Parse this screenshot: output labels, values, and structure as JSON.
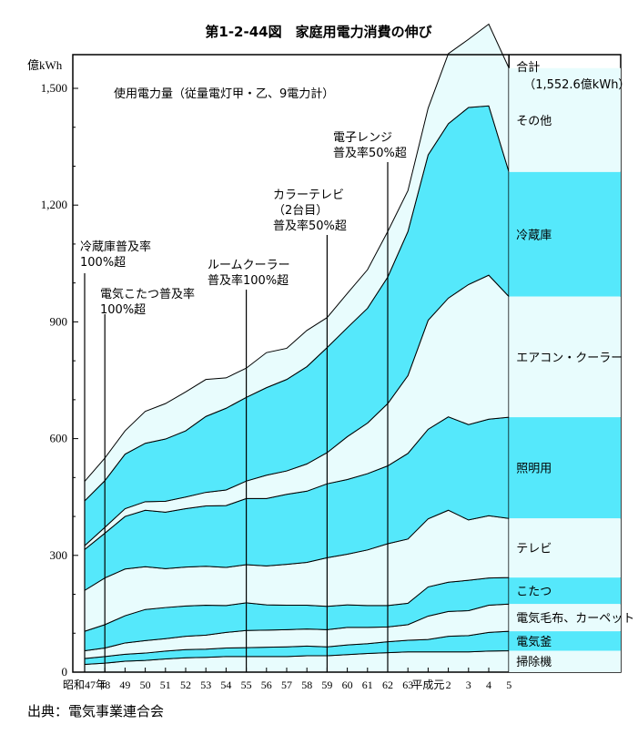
{
  "title": "第1-2-44図　家庭用電力消費の伸び",
  "source": "出典：電気事業連合会",
  "chart_data": {
    "type": "area",
    "stacked": true,
    "y_unit": "億kWh",
    "y_subtitle": "使用電力量（従量電灯甲・乙、9電力計）",
    "ylim": [
      0,
      1570
    ],
    "yticks": [
      0,
      300,
      600,
      900,
      1200,
      1500
    ],
    "ytick_labels": [
      "0",
      "300",
      "600",
      "900",
      "1,200",
      "1,500"
    ],
    "x": [
      "昭和47年",
      "48",
      "49",
      "50",
      "51",
      "52",
      "53",
      "54",
      "55",
      "56",
      "57",
      "58",
      "59",
      "60",
      "61",
      "62",
      "63",
      "平成元",
      "2",
      "3",
      "4",
      "5"
    ],
    "series": [
      {
        "name": "掃除機",
        "values": [
          20,
          23,
          28,
          30,
          34,
          37,
          38,
          40,
          40,
          40,
          40,
          42,
          42,
          45,
          48,
          50,
          52,
          52,
          52,
          52,
          54,
          55
        ],
        "color": "#e8fcfd"
      },
      {
        "name": "電気釜",
        "values": [
          15,
          17,
          18,
          19,
          20,
          21,
          21,
          22,
          23,
          24,
          25,
          25,
          23,
          25,
          25,
          28,
          30,
          32,
          40,
          42,
          48,
          50
        ],
        "color": "#55e8fb"
      },
      {
        "name": "電気毛布、カーペット",
        "values": [
          20,
          22,
          29,
          32,
          32,
          34,
          36,
          40,
          44,
          44,
          44,
          44,
          44,
          45,
          42,
          38,
          40,
          60,
          64,
          64,
          70,
          70
        ],
        "color": "#e8fcfd"
      },
      {
        "name": "こたつ",
        "values": [
          50,
          60,
          70,
          80,
          80,
          78,
          77,
          69,
          71,
          65,
          63,
          61,
          60,
          58,
          56,
          55,
          55,
          75,
          75,
          78,
          70,
          68
        ],
        "color": "#55e8fb"
      },
      {
        "name": "テレビ",
        "values": [
          105,
          120,
          120,
          110,
          100,
          100,
          100,
          98,
          98,
          100,
          105,
          110,
          125,
          130,
          143,
          159,
          165,
          175,
          185,
          155,
          160,
          152
        ],
        "color": "#e8fcfd"
      },
      {
        "name": "照明用",
        "values": [
          105,
          115,
          135,
          145,
          145,
          150,
          155,
          159,
          170,
          173,
          180,
          183,
          190,
          192,
          196,
          200,
          220,
          230,
          240,
          245,
          248,
          260
        ],
        "color": "#55e8fb"
      },
      {
        "name": "エアコン・クーラー",
        "values": [
          10,
          15,
          20,
          22,
          28,
          30,
          35,
          40,
          45,
          60,
          60,
          70,
          80,
          110,
          130,
          160,
          200,
          280,
          305,
          360,
          370,
          310
        ],
        "color": "#e8fcfd"
      },
      {
        "name": "冷蔵庫",
        "values": [
          115,
          120,
          140,
          150,
          160,
          170,
          195,
          210,
          215,
          225,
          235,
          250,
          270,
          280,
          295,
          325,
          370,
          425,
          448,
          455,
          435,
          320
        ],
        "color": "#55e8fb"
      },
      {
        "name": "その他",
        "values": [
          50,
          58,
          60,
          82,
          91,
          100,
          95,
          78,
          75,
          90,
          80,
          93,
          77,
          88,
          99,
          117,
          105,
          120,
          180,
          175,
          210,
          267
        ],
        "color": "#e8fcfd"
      }
    ],
    "total": {
      "label_1": "合計",
      "label_2": "（1,552.6億kWh）",
      "value": 1552.6
    },
    "annotations": [
      {
        "lines": [
          "冷蔵庫普及率",
          "100%超"
        ],
        "x_index": 0
      },
      {
        "lines": [
          "電気こたつ普及率",
          "100%超"
        ],
        "x_index": 1
      },
      {
        "lines": [
          "ルームクーラー",
          "普及率100%超"
        ],
        "x_index": 8
      },
      {
        "lines": [
          "カラーテレビ",
          "（2台目）",
          "普及率50%超"
        ],
        "x_index": 12
      },
      {
        "lines": [
          "電子レンジ",
          "普及率50%超"
        ],
        "x_index": 15
      }
    ]
  }
}
